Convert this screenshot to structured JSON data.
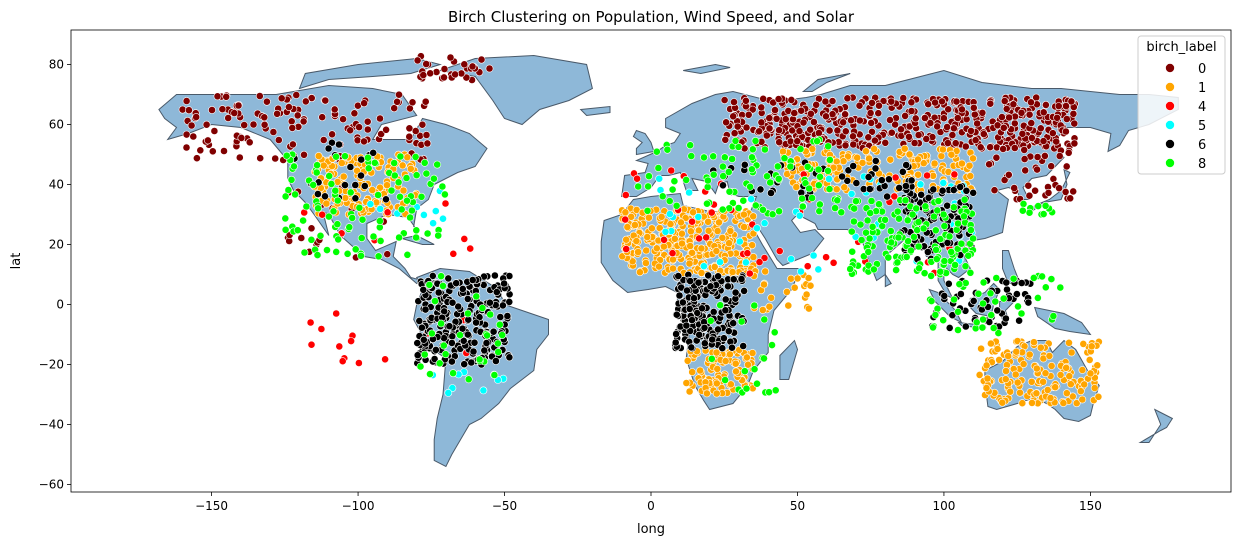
{
  "chart_data": {
    "type": "scatter",
    "title": "Birch Clustering on Population, Wind Speed, and Solar",
    "xlabel": "long",
    "ylabel": "lat",
    "xlim": [
      -198,
      198
    ],
    "ylim": [
      -62.5,
      91.5
    ],
    "xticks": [
      -150,
      -100,
      -50,
      0,
      50,
      100,
      150
    ],
    "yticks": [
      -60,
      -40,
      -20,
      0,
      20,
      40,
      60,
      80
    ],
    "grid": false,
    "legend": {
      "title": "birch_label",
      "placement": "top-right",
      "entries": [
        {
          "label": "0",
          "color": "#800000"
        },
        {
          "label": "1",
          "color": "#FFA500"
        },
        {
          "label": "4",
          "color": "#FF0000"
        },
        {
          "label": "5",
          "color": "#00FFFF"
        },
        {
          "label": "6",
          "color": "#000000"
        },
        {
          "label": "8",
          "color": "#00FF00"
        }
      ]
    },
    "land_color": "#8EB8D8",
    "land_edge_color": "#4a5a6a",
    "series": [
      {
        "name": "0",
        "color": "#800000",
        "regions": [
          {
            "lon": [
              -160,
              -75
            ],
            "lat": [
              48,
              70
            ],
            "n": 140
          },
          {
            "lon": [
              -80,
              -55
            ],
            "lat": [
              74,
              83
            ],
            "n": 30
          },
          {
            "lon": [
              25,
              145
            ],
            "lat": [
              52,
              69
            ],
            "n": 520
          },
          {
            "lon": [
              115,
              145
            ],
            "lat": [
              35,
              52
            ],
            "n": 40
          },
          {
            "lon": [
              -125,
              -90
            ],
            "lat": [
              15,
              40
            ],
            "n": 20
          }
        ]
      },
      {
        "name": "1",
        "color": "#FFA500",
        "regions": [
          {
            "lon": [
              -115,
              -80
            ],
            "lat": [
              30,
              50
            ],
            "n": 140
          },
          {
            "lon": [
              -10,
              35
            ],
            "lat": [
              10,
              32
            ],
            "n": 320
          },
          {
            "lon": [
              45,
              110
            ],
            "lat": [
              38,
              52
            ],
            "n": 180
          },
          {
            "lon": [
              112,
              153
            ],
            "lat": [
              -33,
              -12
            ],
            "n": 160
          },
          {
            "lon": [
              12,
              35
            ],
            "lat": [
              -30,
              -15
            ],
            "n": 100
          },
          {
            "lon": [
              35,
              55
            ],
            "lat": [
              -2,
              12
            ],
            "n": 25
          }
        ]
      },
      {
        "name": "4",
        "color": "#FF0000",
        "regions": [
          {
            "lon": [
              -120,
              -60
            ],
            "lat": [
              -20,
              40
            ],
            "n": 25
          },
          {
            "lon": [
              -10,
              110
            ],
            "lat": [
              10,
              45
            ],
            "n": 45
          }
        ]
      },
      {
        "name": "5",
        "color": "#00FFFF",
        "regions": [
          {
            "lon": [
              -100,
              -70
            ],
            "lat": [
              25,
              45
            ],
            "n": 10
          },
          {
            "lon": [
              0,
              110
            ],
            "lat": [
              10,
              45
            ],
            "n": 50
          },
          {
            "lon": [
              -75,
              -50
            ],
            "lat": [
              -30,
              -20
            ],
            "n": 8
          }
        ]
      },
      {
        "name": "6",
        "color": "#000000",
        "regions": [
          {
            "lon": [
              -80,
              -48
            ],
            "lat": [
              -20,
              10
            ],
            "n": 260
          },
          {
            "lon": [
              8,
              32
            ],
            "lat": [
              -15,
              10
            ],
            "n": 200
          },
          {
            "lon": [
              85,
              110
            ],
            "lat": [
              15,
              40
            ],
            "n": 120
          },
          {
            "lon": [
              95,
              130
            ],
            "lat": [
              -8,
              8
            ],
            "n": 60
          },
          {
            "lon": [
              -125,
              -90
            ],
            "lat": [
              35,
              55
            ],
            "n": 20
          },
          {
            "lon": [
              20,
              90
            ],
            "lat": [
              35,
              48
            ],
            "n": 50
          }
        ]
      },
      {
        "name": "8",
        "color": "#00FF00",
        "regions": [
          {
            "lon": [
              -125,
              -70
            ],
            "lat": [
              15,
              50
            ],
            "n": 100
          },
          {
            "lon": [
              -5,
              65
            ],
            "lat": [
              30,
              55
            ],
            "n": 90
          },
          {
            "lon": [
              68,
              110
            ],
            "lat": [
              10,
              35
            ],
            "n": 150
          },
          {
            "lon": [
              95,
              140
            ],
            "lat": [
              -10,
              10
            ],
            "n": 40
          },
          {
            "lon": [
              -80,
              -50
            ],
            "lat": [
              -25,
              10
            ],
            "n": 30
          },
          {
            "lon": [
              20,
              45
            ],
            "lat": [
              -30,
              0
            ],
            "n": 20
          },
          {
            "lon": [
              125,
              140
            ],
            "lat": [
              30,
              35
            ],
            "n": 10
          }
        ]
      }
    ]
  }
}
